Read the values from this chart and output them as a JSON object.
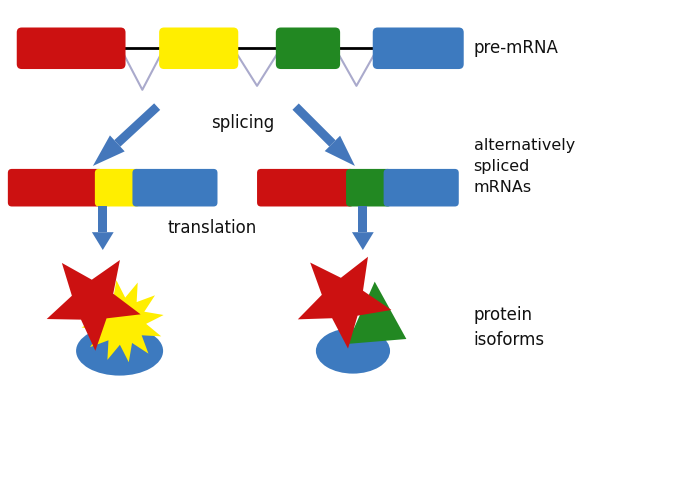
{
  "bg_color": "#ffffff",
  "red": "#cc1111",
  "yellow": "#ffee00",
  "green": "#228822",
  "blue": "#3d7abf",
  "arrow_color": "#4477bb",
  "text_color": "#111111",
  "pre_mrna_label": "pre-mRNA",
  "splicing_label": "splicing",
  "translation_label": "translation",
  "alt_splice_label": "alternatively\nspliced\nmRNAs",
  "protein_label": "protein\nisoforms",
  "intron_color": "#aaaacc"
}
